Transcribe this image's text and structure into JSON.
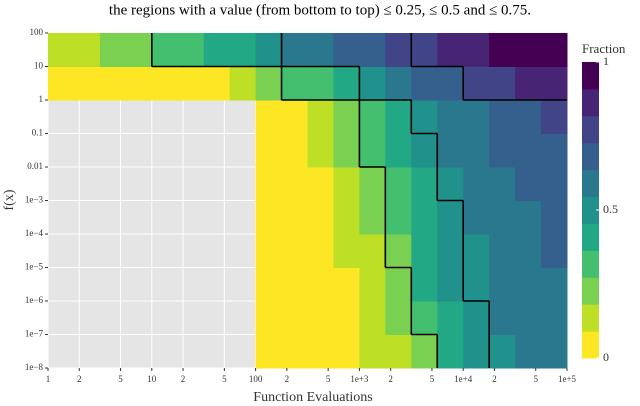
{
  "chart_data": {
    "type": "heatmap",
    "caption": "the regions with a value (from bottom to top) ≤ 0.25, ≤ 0.5 and ≤ 0.75.",
    "x_label": "Function Evaluations",
    "y_label": "f(x)",
    "legend_title": "Fraction",
    "log_x": true,
    "log_y": true,
    "grid": true,
    "xlim": [
      1,
      100000
    ],
    "ylim": [
      1e-08,
      100
    ],
    "xticks": [
      1,
      2,
      5,
      10,
      {
        "value": 20,
        "label": "2"
      },
      {
        "value": 50,
        "label": "5"
      },
      100,
      {
        "value": 200,
        "label": "2"
      },
      {
        "value": 500,
        "label": "5"
      },
      {
        "value": 1000,
        "label": "1e+3"
      },
      {
        "value": 2000,
        "label": "2"
      },
      {
        "value": 5000,
        "label": "5"
      },
      {
        "value": 10000,
        "label": "1e+4"
      },
      {
        "value": 20000,
        "label": "2"
      },
      {
        "value": 50000,
        "label": "5"
      },
      {
        "value": 100000,
        "label": "1e+5"
      }
    ],
    "yticks": [
      100,
      10,
      1,
      0.1,
      0.01,
      {
        "value": 0.001,
        "label": "1e−3"
      },
      {
        "value": 0.0001,
        "label": "1e−4"
      },
      {
        "value": 1e-05,
        "label": "1e−5"
      },
      {
        "value": 1e-06,
        "label": "1e−6"
      },
      {
        "value": 1e-07,
        "label": "1e−7"
      },
      {
        "value": 1e-08,
        "label": "1e−8"
      }
    ],
    "xbins": [
      1,
      1.778,
      3.162,
      5.623,
      10,
      17.78,
      31.62,
      56.23,
      100,
      177.8,
      316.2,
      562.3,
      1000,
      1778,
      3162,
      5623,
      10000,
      17783,
      31623,
      56234,
      100000
    ],
    "ybins": [
      1e-08,
      1e-07,
      1e-06,
      1e-05,
      0.0001,
      0.001,
      0.01,
      0.1,
      1,
      10,
      100
    ],
    "values": [
      [
        null,
        null,
        null,
        null,
        null,
        null,
        null,
        null,
        0,
        0,
        0.01,
        0.05,
        0.1,
        0.18,
        0.25,
        0.4,
        0.48,
        0.53,
        0.57,
        0.6
      ],
      [
        null,
        null,
        null,
        null,
        null,
        null,
        null,
        null,
        0,
        0,
        0.02,
        0.06,
        0.12,
        0.2,
        0.3,
        0.44,
        0.5,
        0.55,
        0.59,
        0.62
      ],
      [
        null,
        null,
        null,
        null,
        null,
        null,
        null,
        null,
        0,
        0,
        0.03,
        0.08,
        0.15,
        0.24,
        0.38,
        0.46,
        0.52,
        0.57,
        0.6,
        0.63
      ],
      [
        null,
        null,
        null,
        null,
        null,
        null,
        null,
        null,
        0,
        0,
        0.04,
        0.1,
        0.18,
        0.27,
        0.4,
        0.48,
        0.53,
        0.58,
        0.62,
        0.65
      ],
      [
        null,
        null,
        null,
        null,
        null,
        null,
        null,
        null,
        0,
        0.01,
        0.05,
        0.12,
        0.2,
        0.3,
        0.42,
        0.5,
        0.55,
        0.6,
        0.63,
        0.66
      ],
      [
        null,
        null,
        null,
        null,
        null,
        null,
        null,
        null,
        0,
        0.02,
        0.07,
        0.15,
        0.25,
        0.35,
        0.45,
        0.52,
        0.57,
        0.62,
        0.65,
        0.68
      ],
      [
        null,
        null,
        null,
        null,
        null,
        null,
        null,
        null,
        0,
        0.04,
        0.1,
        0.2,
        0.3,
        0.4,
        0.48,
        0.55,
        0.6,
        0.64,
        0.68,
        0.7
      ],
      [
        null,
        null,
        null,
        null,
        null,
        null,
        null,
        null,
        0.02,
        0.08,
        0.15,
        0.25,
        0.35,
        0.45,
        0.52,
        0.58,
        0.63,
        0.68,
        0.72,
        0.75
      ],
      [
        0,
        0,
        0,
        0,
        0.02,
        0.05,
        0.08,
        0.12,
        0.2,
        0.28,
        0.36,
        0.45,
        0.52,
        0.6,
        0.66,
        0.72,
        0.76,
        0.8,
        0.82,
        0.85
      ],
      [
        0.1,
        0.15,
        0.2,
        0.25,
        0.3,
        0.35,
        0.4,
        0.45,
        0.5,
        0.55,
        0.6,
        0.65,
        0.7,
        0.75,
        0.8,
        0.85,
        0.9,
        0.95,
        0.97,
        1
      ]
    ],
    "contour_levels": [
      0.25,
      0.5,
      0.75
    ],
    "contour_color": "#000000",
    "clim": [
      0,
      1
    ],
    "cbticks": [
      0,
      0.5,
      1
    ],
    "colormap": [
      "#fde725",
      "#bddf26",
      "#7ad151",
      "#44bf70",
      "#22a884",
      "#21918c",
      "#2a788e",
      "#355f8d",
      "#414487",
      "#482475",
      "#440154"
    ]
  }
}
